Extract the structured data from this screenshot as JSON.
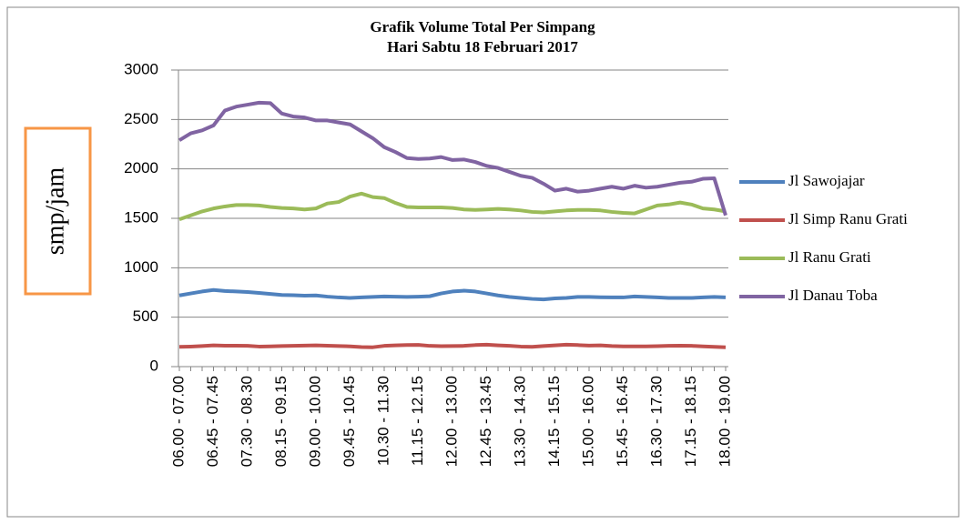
{
  "chart_data": {
    "type": "line",
    "title": "Grafik Volume Total Per Simpang",
    "subtitle": "Hari Sabtu 18 Februari 2017",
    "y_label": "smp/jam",
    "categories": [
      "06.00 - 07.00",
      null,
      null,
      "06.45 - 07.45",
      null,
      null,
      "07.30 - 08.30",
      null,
      null,
      "08.15 - 09.15",
      null,
      null,
      "09.00 - 10.00",
      null,
      null,
      "09.45 - 10.45",
      null,
      null,
      "10.30 - 11.30",
      null,
      null,
      "11.15 - 12.15",
      null,
      null,
      "12.00 - 13.00",
      null,
      null,
      "12.45 - 13.45",
      null,
      null,
      "13.30 - 14.30",
      null,
      null,
      "14.15 - 15.15",
      null,
      null,
      "15.00 - 16.00",
      null,
      null,
      "15.45 - 16.45",
      null,
      null,
      "16.30 - 17.30",
      null,
      null,
      "17.15 - 18.15",
      null,
      null,
      "18.00 - 19.00"
    ],
    "series": [
      {
        "name": "Jl Sawojajar",
        "color": "#4f81bd",
        "values": [
          720,
          740,
          760,
          775,
          765,
          760,
          755,
          745,
          735,
          725,
          722,
          718,
          720,
          708,
          700,
          695,
          700,
          705,
          710,
          707,
          705,
          708,
          712,
          740,
          760,
          768,
          760,
          740,
          720,
          705,
          695,
          685,
          680,
          690,
          695,
          705,
          705,
          702,
          700,
          700,
          710,
          705,
          700,
          695,
          695,
          695,
          700,
          705,
          700
        ]
      },
      {
        "name": "Jl Simp Ranu Grati",
        "color": "#c0504d",
        "values": [
          200,
          203,
          208,
          215,
          212,
          212,
          210,
          203,
          205,
          208,
          210,
          213,
          215,
          212,
          208,
          205,
          198,
          196,
          210,
          215,
          218,
          220,
          210,
          207,
          208,
          210,
          218,
          222,
          215,
          210,
          203,
          200,
          208,
          215,
          222,
          218,
          213,
          215,
          208,
          205,
          205,
          205,
          207,
          210,
          212,
          210,
          205,
          200,
          196
        ]
      },
      {
        "name": "Jl Ranu Grati",
        "color": "#9bbb59",
        "values": [
          1490,
          1530,
          1570,
          1600,
          1620,
          1635,
          1635,
          1630,
          1615,
          1605,
          1600,
          1590,
          1600,
          1650,
          1665,
          1720,
          1750,
          1715,
          1705,
          1655,
          1615,
          1610,
          1610,
          1610,
          1605,
          1590,
          1585,
          1590,
          1595,
          1590,
          1580,
          1565,
          1560,
          1570,
          1580,
          1585,
          1585,
          1580,
          1565,
          1555,
          1550,
          1590,
          1630,
          1640,
          1660,
          1640,
          1600,
          1590,
          1570
        ]
      },
      {
        "name": "Jl Danau Toba",
        "color": "#8064a2",
        "values": [
          2290,
          2360,
          2390,
          2440,
          2590,
          2630,
          2650,
          2670,
          2665,
          2560,
          2530,
          2520,
          2490,
          2490,
          2470,
          2450,
          2380,
          2310,
          2220,
          2170,
          2110,
          2100,
          2105,
          2120,
          2090,
          2095,
          2070,
          2030,
          2010,
          1970,
          1930,
          1910,
          1850,
          1780,
          1800,
          1770,
          1780,
          1800,
          1820,
          1800,
          1830,
          1810,
          1820,
          1840,
          1860,
          1870,
          1900,
          1905,
          1530
        ]
      }
    ],
    "ylim": [
      0,
      3000
    ],
    "yticks": [
      0,
      500,
      1000,
      1500,
      2000,
      2500,
      3000
    ],
    "grid": true,
    "legend": "right"
  }
}
